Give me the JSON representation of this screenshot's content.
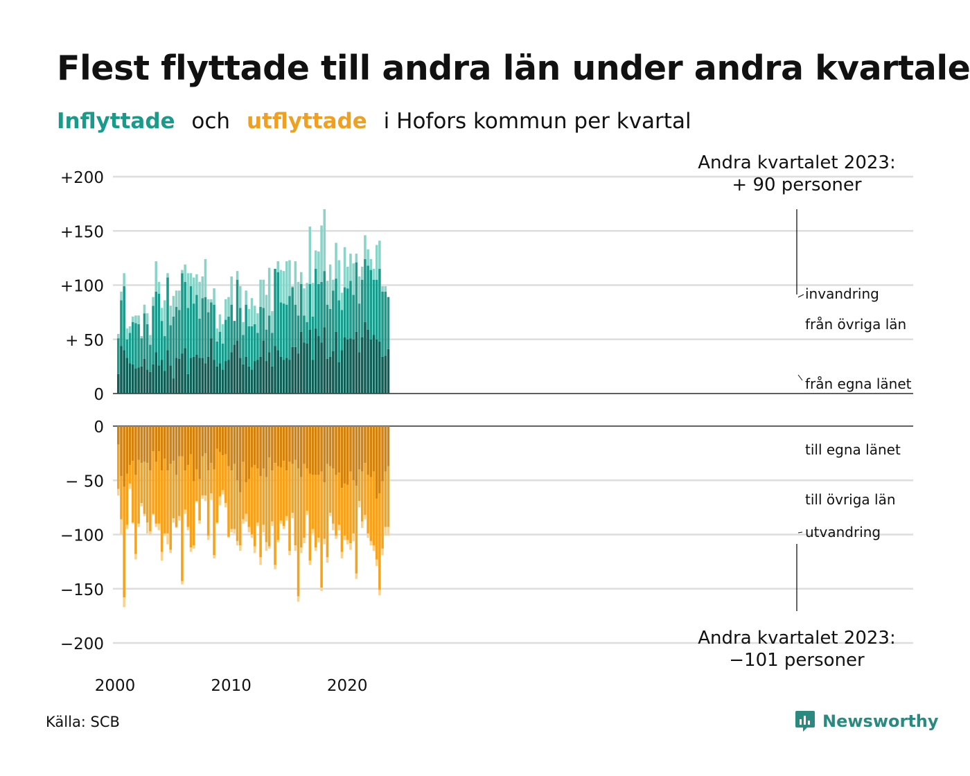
{
  "title": "Flest flyttade till andra län under andra kvartalet",
  "subtitle": {
    "part1": "Inflyttade",
    "part2": "och",
    "part3": "utflyttade",
    "part4": "i Hofors kommun per kvartal"
  },
  "source": "Källa: SCB",
  "logo": {
    "text": "Newsworthy",
    "icon": "newsworthy-logo-icon"
  },
  "colors": {
    "in_own": "#0f5f57",
    "in_other": "#1a9a8a",
    "in_immig": "#8ad3c8",
    "out_own": "#d4820e",
    "out_other": "#f5a21e",
    "out_emig": "#f9d38e",
    "grid": "#dddddd"
  },
  "chart_data": {
    "type": "bar",
    "stacked": true,
    "diverging": true,
    "periods_start": "2000 Q1",
    "periods_end": "2023 Q2",
    "x_ticks": [
      "2000",
      "2010",
      "2020"
    ],
    "top_panel": {
      "ylim": [
        0,
        200
      ],
      "ticks": [
        "+200",
        "+150",
        "+100",
        "+ 50",
        "0"
      ],
      "series_labels": [
        "invandring",
        "från övriga län",
        "från egna länet"
      ],
      "annotation": {
        "line1": "Andra kvartalet 2023:",
        "line2": "+ 90 personer"
      }
    },
    "bottom_panel": {
      "ylim": [
        -200,
        0
      ],
      "ticks": [
        "0",
        "− 50",
        "−100",
        "−150",
        "−200"
      ],
      "series_labels": [
        "till egna länet",
        "till övriga län",
        "utvandring"
      ],
      "annotation": {
        "line1": "Andra kvartalet 2023:",
        "line2": "−101 personer"
      }
    },
    "series": [
      {
        "name": "från egna länet",
        "values": [
          18,
          44,
          40,
          33,
          28,
          27,
          23,
          24,
          25,
          32,
          22,
          20,
          27,
          38,
          26,
          31,
          21,
          40,
          26,
          14,
          33,
          32,
          37,
          42,
          18,
          33,
          34,
          36,
          33,
          33,
          28,
          34,
          51,
          31,
          25,
          28,
          22,
          30,
          31,
          38,
          45,
          49,
          33,
          27,
          34,
          25,
          22,
          30,
          31,
          34,
          49,
          30,
          38,
          25,
          44,
          40,
          34,
          31,
          33,
          31,
          43,
          43,
          37,
          57,
          47,
          46,
          59,
          31,
          60,
          53,
          47,
          61,
          32,
          34,
          39,
          57,
          29,
          40,
          52,
          50,
          51,
          50,
          57,
          38,
          52,
          66,
          59,
          50,
          54,
          50,
          48,
          34,
          35,
          41
        ]
      },
      {
        "name": "från övriga län",
        "values": [
          33,
          42,
          59,
          17,
          28,
          39,
          42,
          40,
          26,
          42,
          42,
          25,
          54,
          56,
          66,
          36,
          32,
          67,
          37,
          57,
          47,
          45,
          74,
          61,
          61,
          66,
          49,
          55,
          36,
          55,
          61,
          41,
          33,
          51,
          23,
          29,
          24,
          38,
          40,
          44,
          22,
          56,
          46,
          27,
          48,
          37,
          40,
          34,
          25,
          46,
          30,
          29,
          34,
          31,
          71,
          72,
          50,
          52,
          49,
          59,
          55,
          39,
          35,
          44,
          25,
          20,
          42,
          40,
          55,
          48,
          56,
          52,
          50,
          44,
          56,
          49,
          57,
          37,
          46,
          47,
          53,
          41,
          64,
          45,
          53,
          58,
          59,
          64,
          51,
          55,
          67,
          60,
          59,
          48
        ]
      },
      {
        "name": "invandring",
        "values": [
          4,
          8,
          12,
          10,
          6,
          5,
          7,
          8,
          2,
          8,
          10,
          9,
          8,
          28,
          11,
          12,
          33,
          4,
          18,
          19,
          15,
          18,
          3,
          16,
          32,
          12,
          24,
          19,
          34,
          20,
          35,
          12,
          3,
          15,
          12,
          16,
          18,
          19,
          18,
          26,
          0,
          8,
          20,
          12,
          13,
          16,
          26,
          17,
          18,
          25,
          26,
          32,
          44,
          20,
          0,
          10,
          30,
          30,
          40,
          33,
          1,
          40,
          31,
          11,
          25,
          36,
          53,
          31,
          17,
          30,
          52,
          57,
          22,
          41,
          10,
          33,
          37,
          16,
          37,
          20,
          25,
          29,
          8,
          25,
          12,
          22,
          15,
          10,
          10,
          32,
          26,
          5,
          5,
          0
        ]
      },
      {
        "name": "till egna länet",
        "values": [
          17,
          46,
          56,
          44,
          36,
          32,
          45,
          31,
          34,
          33,
          34,
          41,
          23,
          33,
          23,
          41,
          30,
          41,
          35,
          32,
          45,
          28,
          28,
          41,
          36,
          26,
          51,
          40,
          49,
          28,
          25,
          41,
          34,
          40,
          21,
          24,
          27,
          26,
          37,
          41,
          35,
          50,
          61,
          33,
          52,
          49,
          38,
          36,
          39,
          46,
          39,
          47,
          29,
          41,
          34,
          37,
          38,
          32,
          41,
          33,
          35,
          31,
          39,
          47,
          35,
          39,
          44,
          45,
          45,
          45,
          42,
          52,
          35,
          37,
          39,
          45,
          43,
          57,
          53,
          54,
          42,
          50,
          55,
          40,
          42,
          34,
          45,
          47,
          42,
          67,
          62,
          51,
          42,
          37
        ]
      },
      {
        "name": "till övriga län",
        "values": [
          41,
          40,
          102,
          47,
          17,
          57,
          73,
          59,
          37,
          48,
          55,
          56,
          58,
          57,
          67,
          75,
          69,
          58,
          79,
          53,
          48,
          55,
          115,
          36,
          57,
          86,
          59,
          29,
          38,
          36,
          39,
          60,
          28,
          79,
          68,
          41,
          32,
          45,
          65,
          54,
          60,
          56,
          49,
          53,
          29,
          44,
          62,
          75,
          50,
          75,
          52,
          60,
          82,
          47,
          94,
          68,
          49,
          60,
          42,
          82,
          45,
          79,
          118,
          65,
          68,
          39,
          80,
          50,
          67,
          58,
          107,
          52,
          86,
          43,
          51,
          56,
          48,
          59,
          48,
          51,
          66,
          49,
          81,
          29,
          46,
          48,
          54,
          59,
          68,
          56,
          89,
          62,
          51,
          56
        ]
      },
      {
        "name": "utvandring",
        "values": [
          6,
          14,
          9,
          4,
          5,
          1,
          5,
          3,
          3,
          2,
          10,
          3,
          1,
          3,
          6,
          8,
          2,
          10,
          3,
          4,
          1,
          4,
          3,
          4,
          3,
          4,
          3,
          1,
          3,
          3,
          5,
          4,
          6,
          3,
          1,
          8,
          4,
          4,
          1,
          3,
          4,
          4,
          5,
          4,
          7,
          5,
          3,
          6,
          3,
          7,
          7,
          8,
          2,
          4,
          4,
          2,
          3,
          3,
          4,
          4,
          5,
          5,
          5,
          5,
          5,
          4,
          4,
          4,
          3,
          4,
          3,
          5,
          5,
          3,
          6,
          3,
          5,
          6,
          4,
          4,
          6,
          7,
          5,
          6,
          6,
          4,
          4,
          4,
          5,
          6,
          5,
          6,
          8,
          8
        ]
      }
    ]
  }
}
